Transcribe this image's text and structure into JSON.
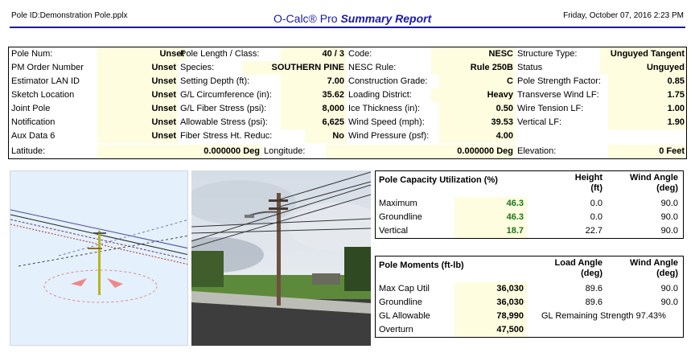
{
  "header": {
    "file": "Pole ID:Demonstration Pole.pplx",
    "title_a": "O-Calc® Pro",
    "title_b": "Summary Report",
    "date": "Friday, October 07, 2016 2:23 PM"
  },
  "info_rows": [
    [
      [
        "Pole Num:",
        "Unset"
      ],
      [
        "Pole Length / Class:",
        "40 / 3"
      ],
      [
        "Code:",
        "NESC"
      ],
      [
        "Structure Type:",
        "Unguyed Tangent"
      ]
    ],
    [
      [
        "PM Order Number",
        "Unset"
      ],
      [
        "Species:",
        "SOUTHERN PINE"
      ],
      [
        "NESC Rule:",
        "Rule 250B"
      ],
      [
        "Status",
        "Unguyed"
      ]
    ],
    [
      [
        "Estimator LAN ID",
        "Unset"
      ],
      [
        "Setting Depth (ft):",
        "7.00"
      ],
      [
        "Construction Grade:",
        "C"
      ],
      [
        "Pole Strength Factor:",
        "0.85"
      ]
    ],
    [
      [
        "Sketch Location",
        "Unset"
      ],
      [
        "G/L Circumference (in):",
        "35.62"
      ],
      [
        "Loading District:",
        "Heavy"
      ],
      [
        "Transverse Wind LF:",
        "1.75"
      ]
    ],
    [
      [
        "Joint Pole",
        "Unset"
      ],
      [
        "G/L Fiber Stress (psi):",
        "8,000"
      ],
      [
        "Ice Thickness (in):",
        "0.50"
      ],
      [
        "Wire Tension LF:",
        "1.00"
      ]
    ],
    [
      [
        "Notification",
        "Unset"
      ],
      [
        "Allowable Stress (psi):",
        "6,625"
      ],
      [
        "Wind Speed (mph):",
        "39.53"
      ],
      [
        "Vertical LF:",
        "1.90"
      ]
    ],
    [
      [
        "Aux Data 6",
        "Unset"
      ],
      [
        "Fiber Stress Ht. Reduc:",
        "No"
      ],
      [
        "Wind Pressure (psf):",
        "4.00"
      ],
      [
        "",
        ""
      ]
    ]
  ],
  "latitude": {
    "label": "Latitude:",
    "value": "0.000000 Deg"
  },
  "longitude": {
    "label": "Longitude:",
    "value": "0.000000 Deg"
  },
  "elevation": {
    "label": "Elevation:",
    "value": "0 Feet"
  },
  "capacity": {
    "title": "Pole Capacity Utilization (%)",
    "h2": "Height",
    "h2b": "(ft)",
    "h3": "Wind Angle",
    "h3b": "(deg)",
    "rows": [
      [
        "Maximum",
        "46.3",
        "0.0",
        "90.0"
      ],
      [
        "Groundline",
        "46.3",
        "0.0",
        "90.0"
      ],
      [
        "Vertical",
        "18.7",
        "22.7",
        "90.0"
      ]
    ]
  },
  "moments": {
    "title": "Pole Moments (ft-lb)",
    "h2": "Load Angle",
    "h2b": "(deg)",
    "h3": "Wind Angle",
    "h3b": "(deg)",
    "rows": [
      [
        "Max Cap Util",
        "36,030",
        "89.6",
        "90.0"
      ],
      [
        "Groundline",
        "36,030",
        "89.6",
        "90.0"
      ],
      [
        "GL Allowable",
        "78,990",
        "GL Remaining Strength 97.43%",
        ""
      ],
      [
        "Overturn",
        "47,500",
        "",
        ""
      ]
    ]
  }
}
